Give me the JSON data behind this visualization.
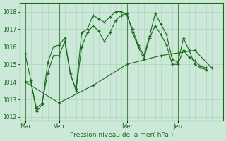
{
  "background_color": "#cce8d8",
  "plot_bg_color": "#cce8d8",
  "grid_color": "#b0d8c0",
  "line_color": "#1a6b1a",
  "text_color": "#1a6b1a",
  "xlabel": "Pression niveau de la mer( hPa )",
  "ylim": [
    1011.8,
    1018.5
  ],
  "yticks": [
    1012,
    1013,
    1014,
    1015,
    1016,
    1017,
    1018
  ],
  "xtick_labels": [
    "Mar",
    "Ven",
    "Mer",
    "Jeu"
  ],
  "xtick_positions": [
    0,
    6,
    18,
    27
  ],
  "vline_positions": [
    0,
    6,
    18,
    27
  ],
  "xlim": [
    -1,
    35
  ],
  "series1_x": [
    0,
    1,
    2,
    3,
    4,
    5,
    6,
    7,
    8,
    9,
    10,
    11,
    12,
    13,
    14,
    15,
    16,
    17,
    18,
    19,
    20,
    21,
    22,
    23,
    24,
    25,
    26,
    27,
    28,
    29,
    30,
    31,
    32
  ],
  "series1_y": [
    1015.6,
    1014.1,
    1012.3,
    1012.7,
    1015.1,
    1016.0,
    1016.1,
    1016.5,
    1014.4,
    1013.6,
    1016.8,
    1017.0,
    1017.8,
    1017.6,
    1017.4,
    1017.7,
    1018.0,
    1018.0,
    1017.8,
    1017.0,
    1016.1,
    1015.5,
    1016.6,
    1017.9,
    1017.3,
    1016.7,
    1015.3,
    1015.1,
    1016.5,
    1015.8,
    1015.0,
    1014.8,
    1014.7
  ],
  "series2_x": [
    0,
    1,
    2,
    3,
    4,
    5,
    6,
    7,
    8,
    9,
    10,
    11,
    12,
    13,
    14,
    15,
    16,
    17,
    18,
    19,
    20,
    21,
    22,
    23,
    24,
    25,
    26,
    27,
    28,
    29,
    30,
    31,
    32
  ],
  "series2_y": [
    1014.0,
    1014.0,
    1012.5,
    1012.8,
    1014.5,
    1015.5,
    1015.5,
    1016.3,
    1014.5,
    1013.5,
    1016.0,
    1016.8,
    1017.2,
    1016.9,
    1016.3,
    1016.8,
    1017.5,
    1017.8,
    1017.9,
    1016.8,
    1016.0,
    1015.3,
    1016.5,
    1017.2,
    1016.7,
    1016.1,
    1015.0,
    1015.0,
    1015.8,
    1015.4,
    1015.2,
    1014.9,
    1014.8
  ],
  "series3_x": [
    0,
    6,
    12,
    18,
    24,
    30,
    33
  ],
  "series3_y": [
    1014.0,
    1012.8,
    1013.8,
    1015.0,
    1015.5,
    1015.8,
    1014.8
  ]
}
